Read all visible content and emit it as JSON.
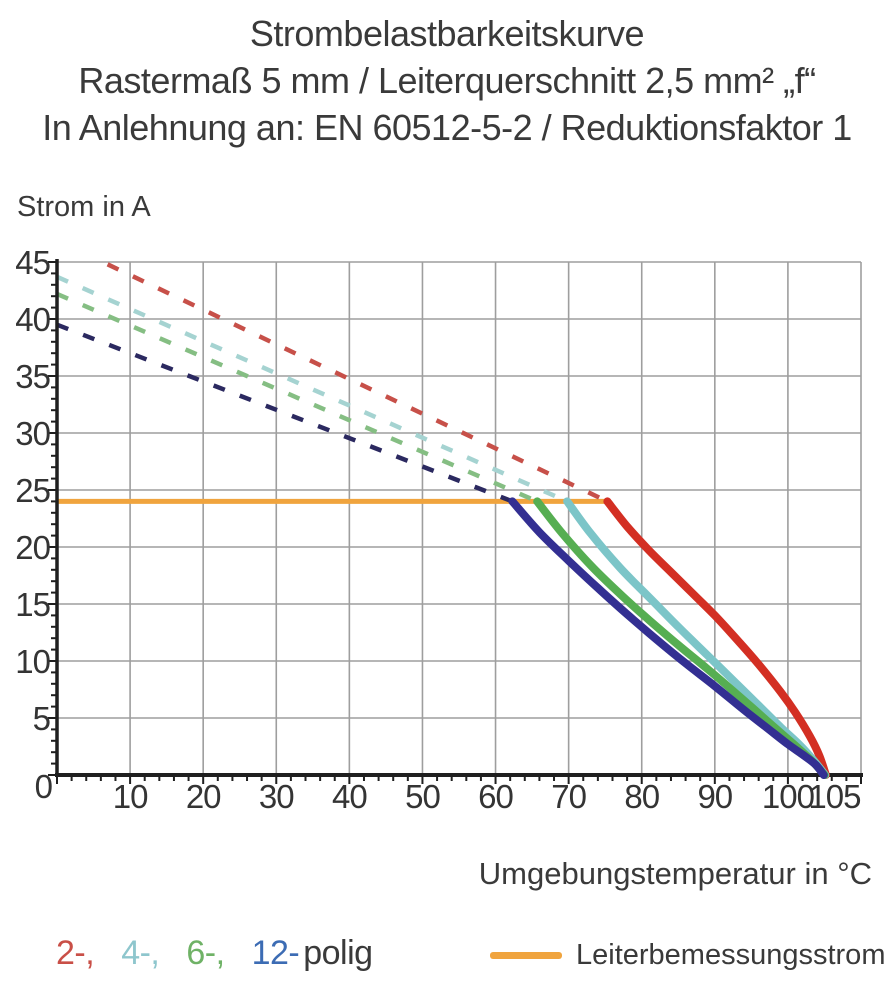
{
  "chart_data": {
    "type": "line",
    "title": "Strombelastbarkeitskurve",
    "subtitle": "Rastermaß 5 mm / Leiterquerschnitt 2,5 mm² „f“",
    "note": "In Anlehnung an: EN 60512-5-2 / Reduktionsfaktor 1",
    "xlabel": "Umgebungstemperatur in °C",
    "ylabel": "Strom in A",
    "xlim": [
      0,
      110
    ],
    "ylim": [
      0,
      45
    ],
    "x_major_ticks": [
      0,
      10,
      20,
      30,
      40,
      50,
      60,
      70,
      80,
      90,
      100,
      105
    ],
    "x_minor_step": 2,
    "x_grid_step": 10,
    "y_major_ticks": [
      0,
      5,
      10,
      15,
      20,
      25,
      30,
      35,
      40,
      45
    ],
    "y_minor_step": 1,
    "y_grid_step": 5,
    "grid": true,
    "grid_color": "#9E9E9E",
    "axis_color": "#1F1F1F",
    "tick_label_color": "#343434",
    "reference_line": {
      "name": "Leiterbemessungsstrom",
      "current_a": 24,
      "t_start": 0,
      "t_end": 75.3,
      "color": "#F0A43E"
    },
    "series": [
      {
        "name": "2-polig",
        "solid_color": "#D32F23",
        "dash_color": "#C75049",
        "dashed": [
          [
            0,
            46.9
          ],
          [
            75.3,
            24
          ]
        ],
        "solid": [
          [
            75.3,
            24
          ],
          [
            78,
            21.8
          ],
          [
            81,
            19.7
          ],
          [
            84,
            17.8
          ],
          [
            87,
            15.9
          ],
          [
            90,
            14.0
          ],
          [
            93,
            11.9
          ],
          [
            96,
            9.7
          ],
          [
            99,
            7.3
          ],
          [
            101,
            5.5
          ],
          [
            103,
            3.4
          ],
          [
            104.3,
            1.7
          ],
          [
            105.2,
            0
          ]
        ]
      },
      {
        "name": "4-polig",
        "solid_color": "#7CC5C8",
        "dash_color": "#A5D3D1",
        "dashed": [
          [
            0,
            43.7
          ],
          [
            69.8,
            24
          ]
        ],
        "solid": [
          [
            69.8,
            24
          ],
          [
            73,
            21.2
          ],
          [
            77,
            18.2
          ],
          [
            81,
            15.6
          ],
          [
            85,
            13.0
          ],
          [
            89,
            10.5
          ],
          [
            93,
            8.0
          ],
          [
            96,
            6.1
          ],
          [
            99,
            4.2
          ],
          [
            101.5,
            2.7
          ],
          [
            103.5,
            1.3
          ],
          [
            105.1,
            0
          ]
        ]
      },
      {
        "name": "6-polig",
        "solid_color": "#56AE52",
        "dash_color": "#85BE83",
        "dashed": [
          [
            0,
            42.2
          ],
          [
            65.7,
            24
          ]
        ],
        "solid": [
          [
            65.7,
            24
          ],
          [
            69,
            21.3
          ],
          [
            73,
            18.4
          ],
          [
            77,
            15.9
          ],
          [
            81,
            13.6
          ],
          [
            85,
            11.4
          ],
          [
            89,
            9.3
          ],
          [
            93,
            7.1
          ],
          [
            96,
            5.4
          ],
          [
            99,
            3.7
          ],
          [
            101.5,
            2.3
          ],
          [
            103.5,
            1.1
          ],
          [
            105.0,
            0
          ]
        ]
      },
      {
        "name": "12-polig",
        "solid_color": "#332F92",
        "dash_color": "#2B2960",
        "dashed": [
          [
            0,
            39.5
          ],
          [
            62.3,
            24
          ]
        ],
        "solid": [
          [
            62.3,
            24
          ],
          [
            66,
            21.3
          ],
          [
            70,
            18.8
          ],
          [
            74,
            16.4
          ],
          [
            78,
            14.1
          ],
          [
            82,
            11.9
          ],
          [
            86,
            9.8
          ],
          [
            90,
            7.8
          ],
          [
            94,
            5.7
          ],
          [
            97,
            4.2
          ],
          [
            100,
            2.7
          ],
          [
            102,
            1.8
          ],
          [
            103.8,
            0.9
          ],
          [
            104.9,
            0
          ]
        ]
      }
    ]
  },
  "legend": {
    "pole_items": [
      {
        "label": "2-,",
        "color": "#C94F47"
      },
      {
        "label": "4-,",
        "color": "#8EC6CD"
      },
      {
        "label": "6-,",
        "color": "#6FB266"
      },
      {
        "label": "12-",
        "color": "#3C6CB4"
      }
    ],
    "suffix": "polig",
    "reference": {
      "label": "Leiterbemessungsstrom",
      "color": "#F0A43E"
    }
  }
}
